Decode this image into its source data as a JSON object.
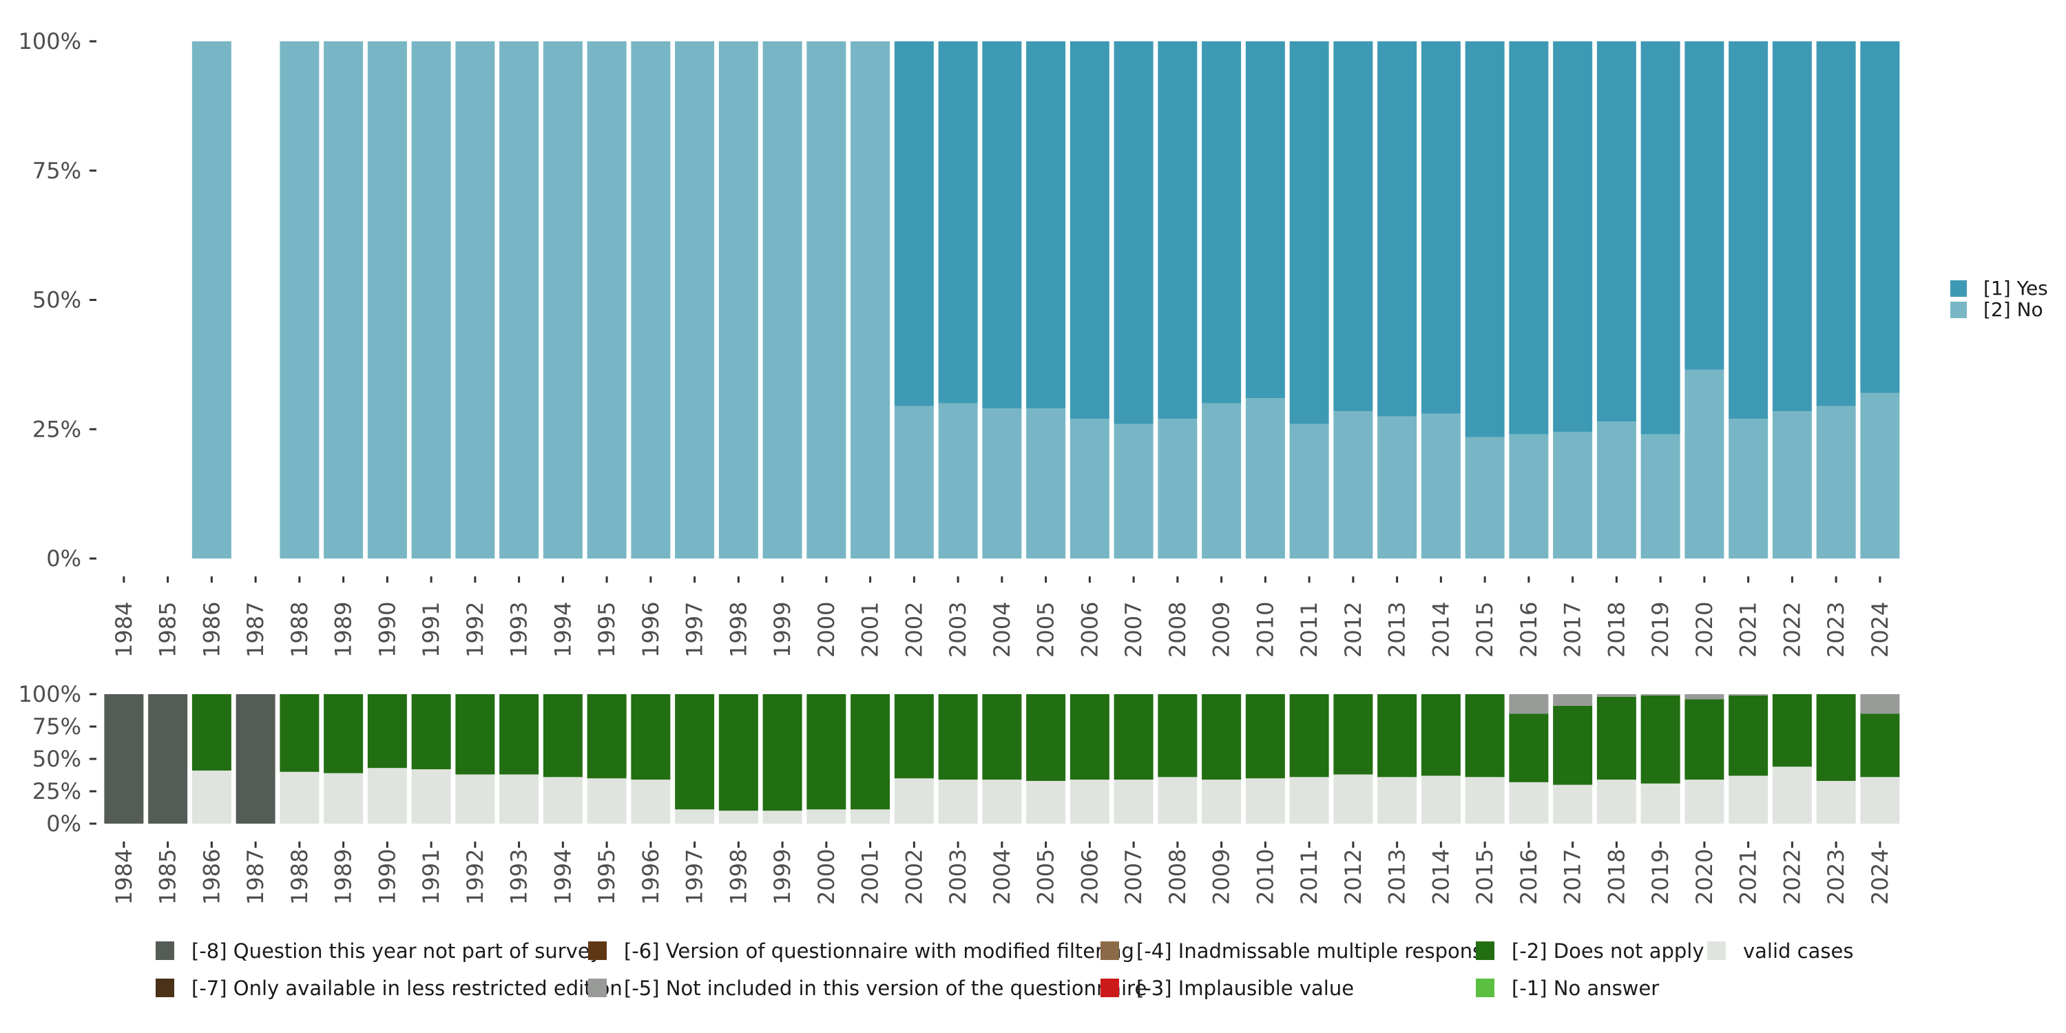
{
  "chart_data": [
    {
      "type": "bar",
      "stacked": true,
      "title": "",
      "xlabel": "",
      "ylabel": "",
      "ylim": [
        0,
        100
      ],
      "y_ticks": [
        "0%",
        "25%",
        "50%",
        "75%",
        "100%"
      ],
      "categories": [
        "1984",
        "1985",
        "1986",
        "1987",
        "1988",
        "1989",
        "1990",
        "1991",
        "1992",
        "1993",
        "1994",
        "1995",
        "1996",
        "1997",
        "1998",
        "1999",
        "2000",
        "2001",
        "2002",
        "2003",
        "2004",
        "2005",
        "2006",
        "2007",
        "2008",
        "2009",
        "2010",
        "2011",
        "2012",
        "2013",
        "2014",
        "2015",
        "2016",
        "2017",
        "2018",
        "2019",
        "2020",
        "2021",
        "2022",
        "2023",
        "2024"
      ],
      "series": [
        {
          "name": "[2] No",
          "color": "#78b6c5",
          "values": [
            null,
            null,
            100,
            null,
            100,
            100,
            100,
            100,
            100,
            100,
            100,
            100,
            100,
            100,
            100,
            100,
            100,
            100,
            29.5,
            30,
            29,
            29,
            27,
            26,
            27,
            30,
            31,
            26,
            28.5,
            27.5,
            28,
            23.5,
            24,
            24.5,
            26.5,
            24,
            36.5,
            27,
            28.5,
            29.5,
            32
          ]
        },
        {
          "name": "[1] Yes",
          "color": "#3e9ab4",
          "values": [
            null,
            null,
            0,
            null,
            0,
            0,
            0,
            0,
            0,
            0,
            0,
            0,
            0,
            0,
            0,
            0,
            0,
            0,
            70.5,
            70,
            71,
            71,
            73,
            74,
            73,
            70,
            69,
            74,
            71.5,
            72.5,
            72,
            76.5,
            76,
            75.5,
            73.5,
            76,
            63.5,
            73,
            71.5,
            70.5,
            68
          ]
        }
      ],
      "legend": {
        "position": "right",
        "entries": [
          "[1] Yes",
          "[2] No"
        ]
      }
    },
    {
      "type": "bar",
      "stacked": true,
      "title": "",
      "xlabel": "",
      "ylabel": "",
      "ylim": [
        0,
        100
      ],
      "y_ticks": [
        "0%",
        "25%",
        "50%",
        "75%",
        "100%"
      ],
      "categories": [
        "1984",
        "1985",
        "1986",
        "1987",
        "1988",
        "1989",
        "1990",
        "1991",
        "1992",
        "1993",
        "1994",
        "1995",
        "1996",
        "1997",
        "1998",
        "1999",
        "2000",
        "2001",
        "2002",
        "2003",
        "2004",
        "2005",
        "2006",
        "2007",
        "2008",
        "2009",
        "2010",
        "2011",
        "2012",
        "2013",
        "2014",
        "2015",
        "2016",
        "2017",
        "2018",
        "2019",
        "2020",
        "2021",
        "2022",
        "2023",
        "2024"
      ],
      "series": [
        {
          "name": "valid cases",
          "color": "#e0e4df",
          "values": [
            0,
            0,
            41,
            0,
            40,
            39,
            43,
            42,
            38,
            38,
            36,
            35,
            34,
            11,
            10,
            10,
            11,
            11,
            35,
            34,
            34,
            33,
            34,
            34,
            36,
            34,
            35,
            36,
            38,
            36,
            37,
            36,
            32,
            30,
            34,
            31,
            34,
            37,
            44,
            33,
            36
          ]
        },
        {
          "name": "[-2] Does not apply",
          "color": "#226e12",
          "values": [
            0,
            0,
            59,
            0,
            60,
            61,
            57,
            58,
            62,
            62,
            64,
            65,
            66,
            89,
            90,
            90,
            89,
            89,
            65,
            66,
            66,
            67,
            66,
            66,
            64,
            66,
            65,
            64,
            62,
            64,
            63,
            64,
            53,
            61,
            64,
            68,
            62,
            62,
            56,
            67,
            49
          ]
        },
        {
          "name": "[-5] Not included in this version of the questionnaire",
          "color": "#999b98",
          "values": [
            0,
            0,
            0,
            0,
            0,
            0,
            0,
            0,
            0,
            0,
            0,
            0,
            0,
            0,
            0,
            0,
            0,
            0,
            0,
            0,
            0,
            0,
            0,
            0,
            0,
            0,
            0,
            0,
            0,
            0,
            0,
            0,
            15,
            9,
            2,
            1,
            4,
            1,
            0,
            0,
            15
          ]
        },
        {
          "name": "[-8] Question this year not part of survey",
          "color": "#555c56",
          "values": [
            100,
            100,
            0,
            100,
            0,
            0,
            0,
            0,
            0,
            0,
            0,
            0,
            0,
            0,
            0,
            0,
            0,
            0,
            0,
            0,
            0,
            0,
            0,
            0,
            0,
            0,
            0,
            0,
            0,
            0,
            0,
            0,
            0,
            0,
            0,
            0,
            0,
            0,
            0,
            0,
            0
          ]
        }
      ],
      "legend": {
        "position": "bottom",
        "entries": [
          {
            "label": "[-8] Question this year not part of survey",
            "color": "#555c56"
          },
          {
            "label": "[-7] Only available in less restricted edition",
            "color": "#4a3117"
          },
          {
            "label": "[-6] Version of questionnaire with modified filtering",
            "color": "#5e3715"
          },
          {
            "label": "[-5] Not included in this version of the questionnaire",
            "color": "#999b98"
          },
          {
            "label": "[-4] Inadmissable multiple response",
            "color": "#8b6a47"
          },
          {
            "label": "[-3] Implausible value",
            "color": "#cc1a1a"
          },
          {
            "label": "[-2] Does not apply",
            "color": "#226e12"
          },
          {
            "label": "[-1] No answer",
            "color": "#5bbf41"
          },
          {
            "label": "valid cases",
            "color": "#e0e4df"
          }
        ]
      }
    }
  ]
}
